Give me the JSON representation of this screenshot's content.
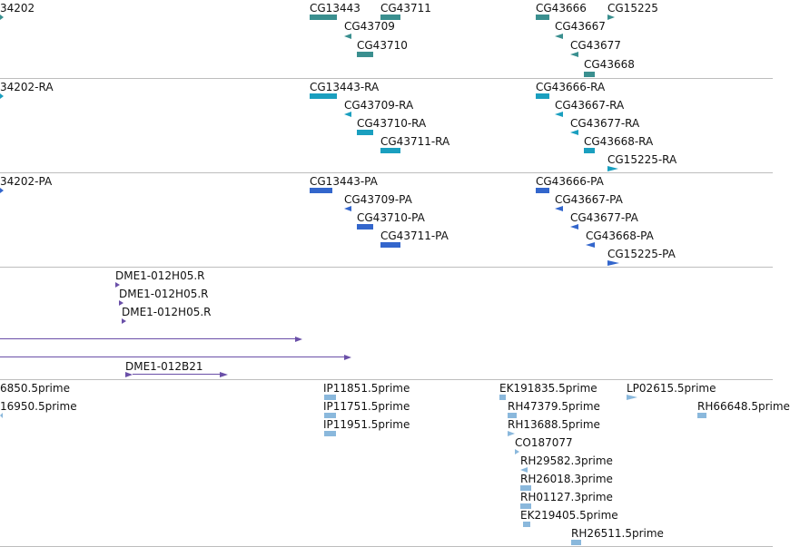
{
  "colors": {
    "gene": "#3a8f8f",
    "transcript": "#1a9fbf",
    "protein": "#3366cc",
    "clone": "#6a4fa8",
    "est": "#8ab8dc",
    "divider": "#bdbdbd"
  },
  "tracks": {
    "gene": {
      "labels": [
        "34202",
        "CG13443",
        "CG43711",
        "CG43709",
        "CG43710",
        "CG43666",
        "CG15225",
        "CG43667",
        "CG43677",
        "CG43668"
      ]
    },
    "transcript": {
      "labels": [
        "34202-RA",
        "CG13443-RA",
        "CG43709-RA",
        "CG43710-RA",
        "CG43711-RA",
        "CG43666-RA",
        "CG43667-RA",
        "CG43677-RA",
        "CG43668-RA",
        "CG15225-RA"
      ]
    },
    "protein": {
      "labels": [
        "34202-PA",
        "CG13443-PA",
        "CG43709-PA",
        "CG43710-PA",
        "CG43711-PA",
        "CG43666-PA",
        "CG43667-PA",
        "CG43677-PA",
        "CG43668-PA",
        "CG15225-PA"
      ]
    },
    "clone": {
      "labels": [
        "DME1-012H05.R",
        "DME1-012H05.R",
        "DME1-012H05.R",
        "DME1-012B21"
      ]
    },
    "est": {
      "labels": [
        "6850.5prime",
        "16950.5prime",
        "IP11851.5prime",
        "IP11751.5prime",
        "IP11951.5prime",
        "EK191835.5prime",
        "LP02615.5prime",
        "RH66648.5prime",
        "RH47379.5prime",
        "RH13688.5prime",
        "CO187077",
        "RH29582.3prime",
        "RH26018.3prime",
        "RH01127.3prime",
        "EK219405.5prime",
        "RH26511.5prime"
      ]
    }
  }
}
